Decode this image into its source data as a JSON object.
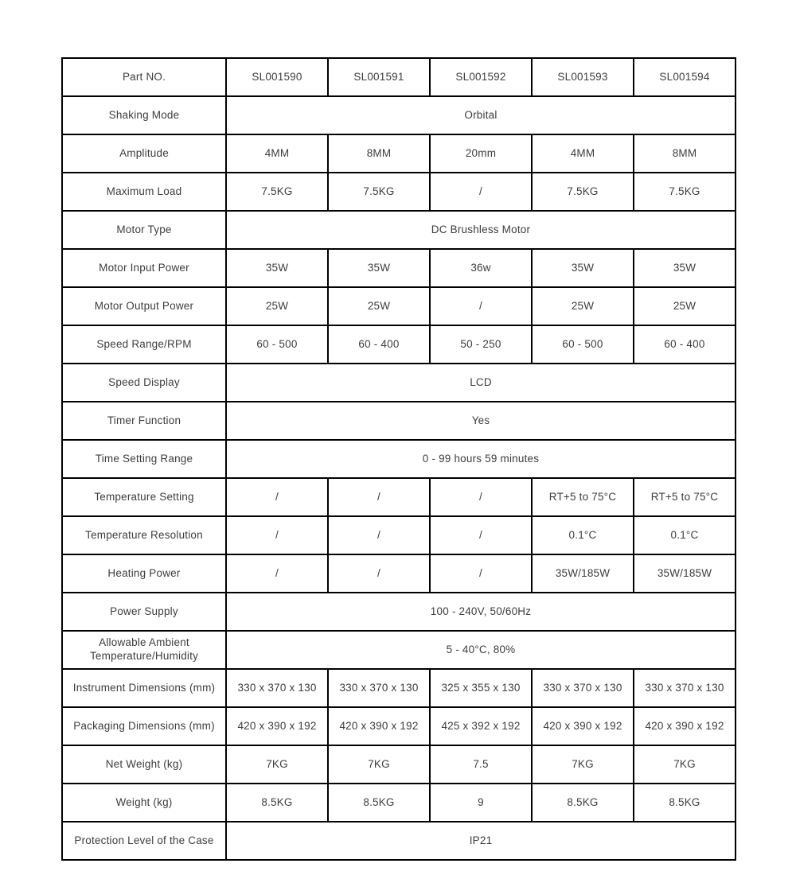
{
  "page": {
    "background_color": "#ffffff",
    "border_color": "#000000",
    "text_color": "#3d3d3d"
  },
  "table": {
    "rows": [
      {
        "label": "Part NO.",
        "values": [
          "SL001590",
          "SL001591",
          "SL001592",
          "SL001593",
          "SL001594"
        ]
      },
      {
        "label": "Shaking Mode",
        "span_value": "Orbital"
      },
      {
        "label": "Amplitude",
        "values": [
          "4MM",
          "8MM",
          "20mm",
          "4MM",
          "8MM"
        ]
      },
      {
        "label": "Maximum Load",
        "values": [
          "7.5KG",
          "7.5KG",
          "/",
          "7.5KG",
          "7.5KG"
        ]
      },
      {
        "label": "Motor Type",
        "span_value": "DC Brushless Motor"
      },
      {
        "label": "Motor Input Power",
        "values": [
          "35W",
          "35W",
          "36w",
          "35W",
          "35W"
        ]
      },
      {
        "label": "Motor Output Power",
        "values": [
          "25W",
          "25W",
          "/",
          "25W",
          "25W"
        ]
      },
      {
        "label": "Speed Range/RPM",
        "values": [
          "60 - 500",
          "60 - 400",
          "50 - 250",
          "60 - 500",
          "60 - 400"
        ]
      },
      {
        "label": "Speed Display",
        "span_value": "LCD"
      },
      {
        "label": "Timer Function",
        "span_value": "Yes"
      },
      {
        "label": "Time Setting Range",
        "span_value": "0 - 99 hours 59 minutes"
      },
      {
        "label": "Temperature Setting",
        "values": [
          "/",
          "/",
          "/",
          "RT+5 to 75°C",
          "RT+5 to 75°C"
        ]
      },
      {
        "label": "Temperature Resolution",
        "values": [
          "/",
          "/",
          "/",
          "0.1°C",
          "0.1°C"
        ]
      },
      {
        "label": "Heating Power",
        "values": [
          "/",
          "/",
          "/",
          "35W/185W",
          "35W/185W"
        ]
      },
      {
        "label": "Power Supply",
        "span_value": "100 - 240V, 50/60Hz"
      },
      {
        "label": "Allowable Ambient Temperature/Humidity",
        "span_value": "5 - 40°C, 80%"
      },
      {
        "label": "Instrument Dimensions (mm)",
        "values": [
          "330 x 370 x 130",
          "330 x 370 x 130",
          "325 x 355 x 130",
          "330 x 370 x 130",
          "330 x 370 x 130"
        ]
      },
      {
        "label": "Packaging Dimensions (mm)",
        "values": [
          "420 x 390 x 192",
          "420 x 390 x 192",
          "425 x 392 x 192",
          "420 x 390 x 192",
          "420 x 390 x 192"
        ]
      },
      {
        "label": "Net Weight (kg)",
        "values": [
          "7KG",
          "7KG",
          "7.5",
          "7KG",
          "7KG"
        ]
      },
      {
        "label": "Weight (kg)",
        "values": [
          "8.5KG",
          "8.5KG",
          "9",
          "8.5KG",
          "8.5KG"
        ]
      },
      {
        "label": "Protection Level of the Case",
        "span_value": "IP21"
      }
    ]
  }
}
